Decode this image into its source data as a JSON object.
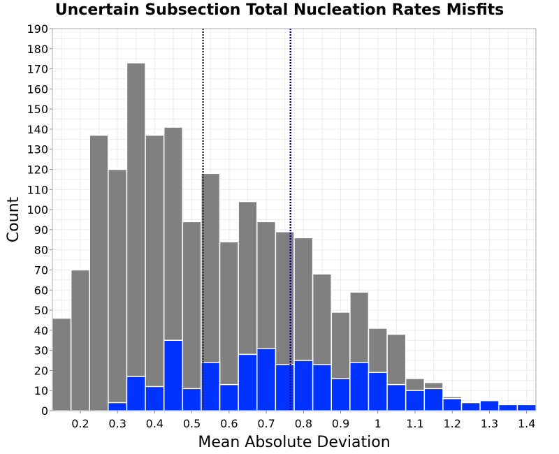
{
  "chart_data": {
    "type": "bar",
    "title": "Uncertain Subsection Total Nucleation Rates Misfits",
    "xlabel": "Mean Absolute Deviation",
    "ylabel": "Count",
    "xlim": [
      0.125,
      1.425
    ],
    "ylim": [
      0,
      190
    ],
    "bin_width": 0.05,
    "x": [
      0.15,
      0.2,
      0.25,
      0.3,
      0.35,
      0.4,
      0.45,
      0.5,
      0.55,
      0.6,
      0.65,
      0.7,
      0.75,
      0.8,
      0.85,
      0.9,
      0.95,
      1.0,
      1.05,
      1.1,
      1.15,
      1.2,
      1.25,
      1.3,
      1.35,
      1.4
    ],
    "series": [
      {
        "color": "#808080",
        "values": [
          46,
          70,
          137,
          120,
          173,
          137,
          141,
          94,
          118,
          84,
          104,
          94,
          89,
          86,
          68,
          49,
          59,
          41,
          38,
          16,
          14,
          7,
          4,
          5,
          3,
          3
        ]
      },
      {
        "color": "#0033ff",
        "values": [
          0,
          0,
          0,
          4,
          17,
          12,
          35,
          11,
          24,
          13,
          28,
          31,
          23,
          25,
          23,
          16,
          24,
          19,
          13,
          10,
          11,
          6,
          4,
          5,
          3,
          3
        ]
      }
    ],
    "vlines": [
      {
        "x": 0.53,
        "color": "#333333",
        "style": "dotted"
      },
      {
        "x": 0.765,
        "color": "#000080",
        "style": "dotted"
      }
    ],
    "x_ticks": [
      "0.2",
      "0.3",
      "0.4",
      "0.5",
      "0.6",
      "0.7",
      "0.8",
      "0.9",
      "1",
      "1.1",
      "1.2",
      "1.3",
      "1.4"
    ],
    "x_tick_values": [
      0.2,
      0.3,
      0.4,
      0.5,
      0.6,
      0.7,
      0.8,
      0.9,
      1.0,
      1.1,
      1.2,
      1.3,
      1.4
    ],
    "y_ticks": [
      "0",
      "10",
      "20",
      "30",
      "40",
      "50",
      "60",
      "70",
      "80",
      "90",
      "100",
      "110",
      "120",
      "130",
      "140",
      "150",
      "160",
      "170",
      "180",
      "190"
    ],
    "y_tick_values": [
      0,
      10,
      20,
      30,
      40,
      50,
      60,
      70,
      80,
      90,
      100,
      110,
      120,
      130,
      140,
      150,
      160,
      170,
      180,
      190
    ],
    "grid": true,
    "legend": "none"
  }
}
